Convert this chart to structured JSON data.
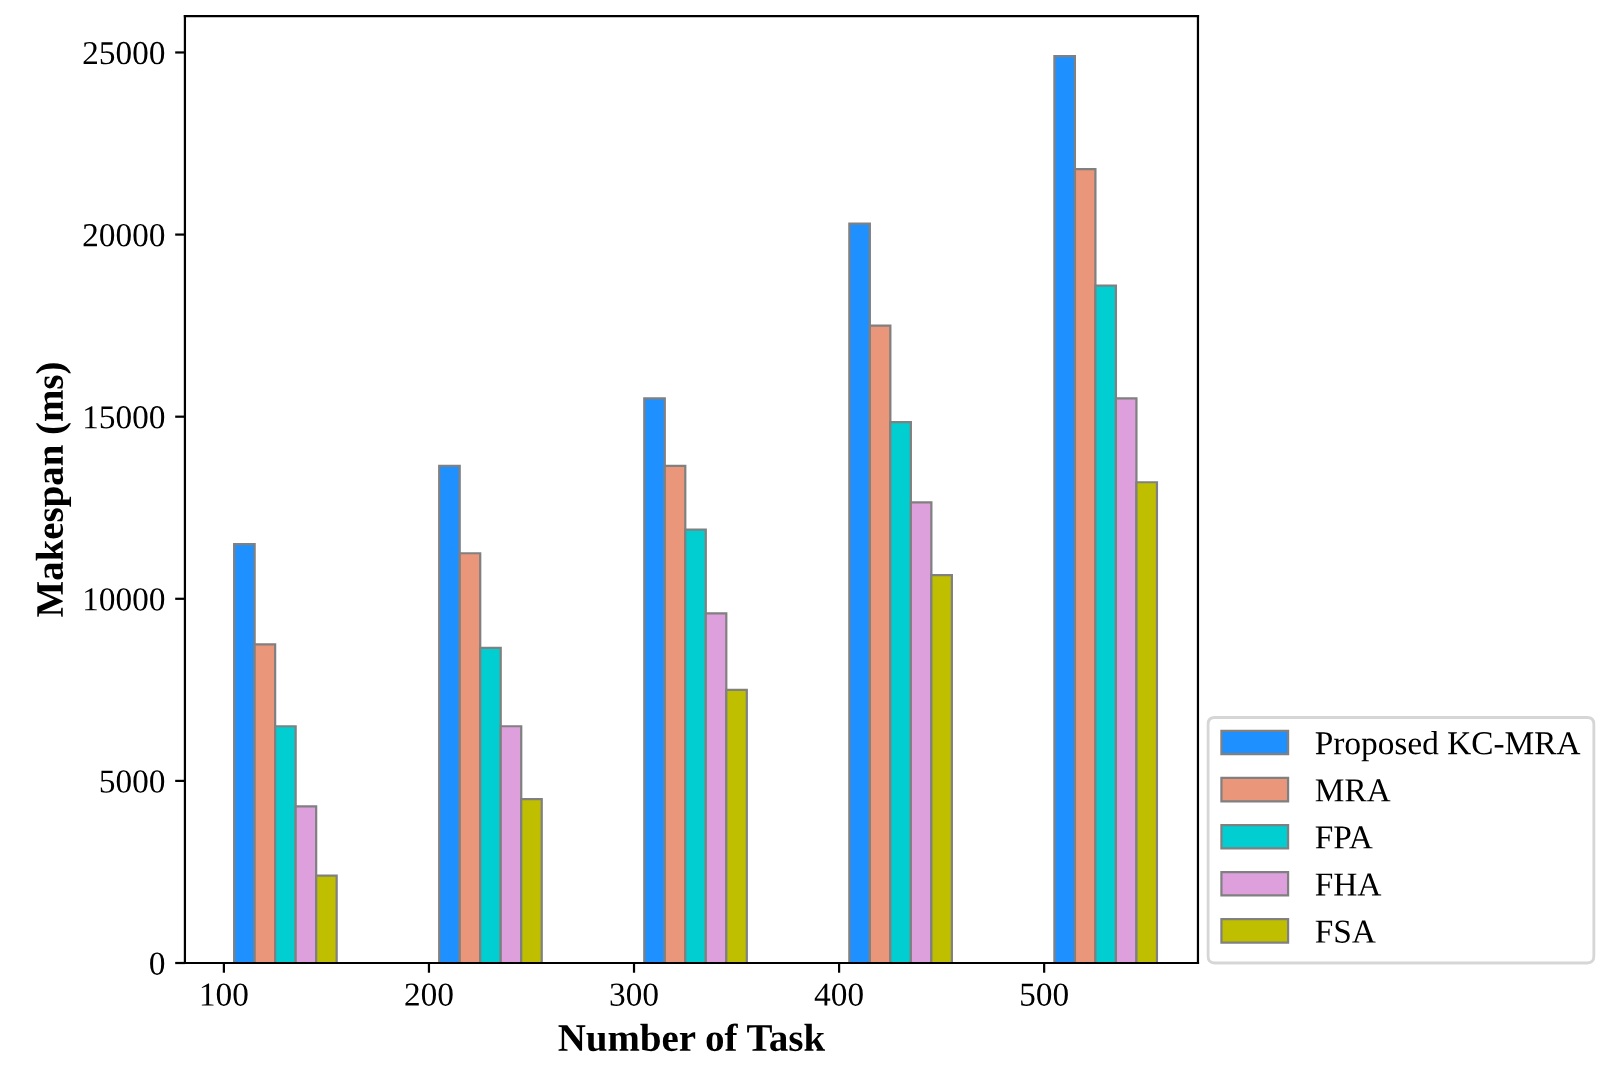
{
  "chart_data": {
    "type": "bar",
    "xlabel": "Number of Task",
    "ylabel": "Makespan (ms)",
    "categories": [
      "100",
      "200",
      "300",
      "400",
      "500"
    ],
    "series": [
      {
        "name": "Proposed KC-MRA",
        "color": "#1e90ff",
        "values": [
          11500,
          13650,
          15500,
          20300,
          24900
        ]
      },
      {
        "name": "MRA",
        "color": "#e9967a",
        "values": [
          8750,
          11250,
          13650,
          17500,
          21800
        ]
      },
      {
        "name": "FPA",
        "color": "#00ced1",
        "values": [
          6500,
          8650,
          11900,
          14850,
          18600
        ]
      },
      {
        "name": "FHA",
        "color": "#dda0dd",
        "values": [
          4300,
          6500,
          9600,
          12650,
          15500
        ]
      },
      {
        "name": "FSA",
        "color": "#bfbf00",
        "values": [
          2400,
          4500,
          7500,
          10650,
          13200
        ]
      }
    ],
    "ylim": [
      0,
      26000
    ],
    "yticks": [
      0,
      5000,
      10000,
      15000,
      20000,
      25000
    ],
    "grid": false,
    "legend": "bottom right"
  }
}
